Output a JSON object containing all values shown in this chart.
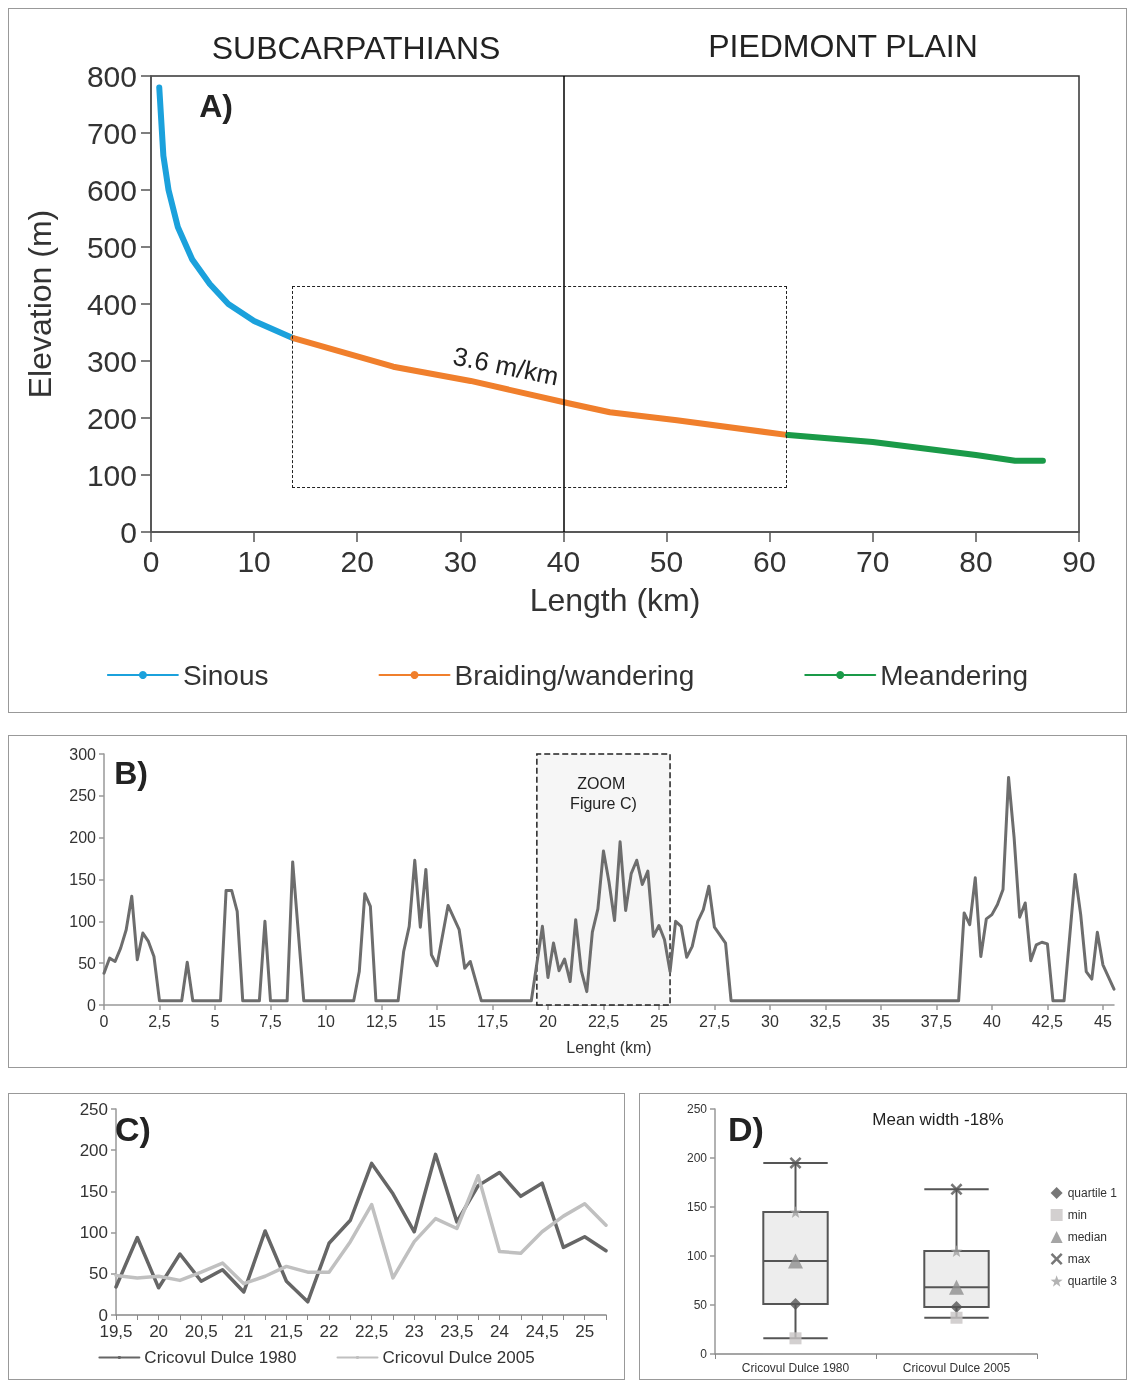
{
  "chart_data": [
    {
      "type": "line",
      "annotations": [
        "SUBCARPATHIANS",
        "PIEDMONT PLAIN",
        "A)",
        "3.6 m/km"
      ],
      "xlabel": "Length (km)",
      "ylabel": "Elevation (m)",
      "xlim": [
        0,
        90
      ],
      "xticks": [
        0,
        10,
        20,
        30,
        40,
        50,
        60,
        70,
        80,
        90
      ],
      "ylim": [
        0,
        800
      ],
      "yticks": [
        0,
        100,
        200,
        300,
        400,
        500,
        600,
        700,
        800
      ],
      "legend": "bottom",
      "ref_lines": [
        {
          "axis": "x",
          "value": 40,
          "color": "#000000"
        }
      ],
      "series": [
        {
          "name": "Sinous",
          "color": "#1ba1dc",
          "x": [
            0.8,
            1.2,
            1.7,
            2.6,
            4,
            5.7,
            7.5,
            10,
            13.8
          ],
          "values": [
            780,
            660,
            600,
            535,
            478,
            435,
            400,
            370,
            340
          ]
        },
        {
          "name": "Braiding/wandering",
          "color": "#f07f2c",
          "x": [
            13.8,
            23.5,
            31,
            40.7,
            44.5,
            51,
            61.8
          ],
          "values": [
            340,
            290,
            265,
            225,
            210,
            196,
            170
          ]
        },
        {
          "name": "Meandering",
          "color": "#1a9a48",
          "x": [
            61.8,
            70,
            80,
            83.8,
            86.5
          ],
          "values": [
            170,
            158,
            135,
            125,
            125
          ]
        }
      ]
    },
    {
      "type": "line",
      "annotations": [
        "B)"
      ],
      "bands": [
        {
          "axis": "x",
          "from": 19.5,
          "to": 25.5,
          "label": "ZOOM Figure C)",
          "color": "#f6f6f6"
        }
      ],
      "xlabel": "Lenght (km)",
      "xlim": [
        0,
        45.5
      ],
      "xticks": [
        0,
        {
          "value": 2.5,
          "label": "2,5"
        },
        5,
        {
          "value": 7.5,
          "label": "7,5"
        },
        10,
        {
          "value": 12.5,
          "label": "12,5"
        },
        15,
        {
          "value": 17.5,
          "label": "17,5"
        },
        20,
        {
          "value": 22.5,
          "label": "22,5"
        },
        25,
        {
          "value": 27.5,
          "label": "27,5"
        },
        30,
        {
          "value": 32.5,
          "label": "32,5"
        },
        35,
        {
          "value": 37.5,
          "label": "37,5"
        },
        40,
        {
          "value": 42.5,
          "label": "42,5"
        },
        45
      ],
      "ylim": [
        0,
        300
      ],
      "yticks": [
        0,
        50,
        100,
        150,
        200,
        250,
        300
      ],
      "color": "#6d6d6d",
      "x": [
        0,
        0.25,
        0.5,
        0.75,
        1,
        1.25,
        1.5,
        1.75,
        2,
        2.25,
        2.5,
        3.5,
        3.75,
        4,
        5.25,
        5.5,
        5.75,
        6,
        6.25,
        7,
        7.25,
        7.5,
        8.25,
        8.5,
        9,
        11.25,
        11.5,
        11.75,
        12,
        12.25,
        13.25,
        13.5,
        13.75,
        14,
        14.25,
        14.5,
        14.75,
        15,
        15.5,
        16,
        16.25,
        16.5,
        17,
        19.25,
        19.75,
        20,
        20.25,
        20.5,
        20.75,
        21,
        21.25,
        21.5,
        21.75,
        22,
        22.25,
        22.5,
        22.75,
        23,
        23.25,
        23.5,
        23.75,
        24,
        24.25,
        24.5,
        24.75,
        25,
        25.25,
        25.5,
        25.75,
        26,
        26.25,
        26.5,
        26.75,
        27,
        27.25,
        27.5,
        28,
        28.25,
        38.5,
        38.75,
        39,
        39.25,
        39.5,
        39.75,
        40,
        40.25,
        40.5,
        40.75,
        41,
        41.25,
        41.5,
        41.75,
        42,
        42.25,
        42.5,
        42.75,
        43.25,
        43.75,
        44,
        44.25,
        44.5,
        44.75,
        45,
        45.5
      ],
      "values": [
        38,
        56,
        52,
        68,
        90,
        130,
        54,
        86,
        76,
        58,
        5,
        5,
        51,
        5,
        5,
        137,
        137,
        112,
        5,
        5,
        100,
        5,
        5,
        171,
        5,
        5,
        40,
        133,
        118,
        5,
        5,
        64,
        94,
        173,
        93,
        162,
        60,
        47,
        119,
        90,
        44,
        52,
        5,
        5,
        94,
        33,
        74,
        41,
        55,
        28,
        102,
        41,
        16,
        87,
        115,
        184,
        147,
        101,
        195,
        113,
        157,
        173,
        144,
        160,
        82,
        95,
        78,
        40,
        100,
        94,
        57,
        70,
        100,
        114,
        142,
        93,
        74,
        5,
        5,
        110,
        96,
        152,
        58,
        103,
        108,
        120,
        138,
        272,
        200,
        105,
        122,
        53,
        72,
        75,
        73,
        5,
        5,
        156,
        108,
        40,
        31,
        87,
        48,
        19
      ]
    },
    {
      "type": "line",
      "annotations": [
        "C)"
      ],
      "categories": [
        "19,5",
        null,
        "20",
        null,
        "20,5",
        null,
        "21",
        null,
        "21,5",
        null,
        "22",
        null,
        "22,5",
        null,
        "23",
        null,
        "23,5",
        null,
        "24",
        null,
        "24,5",
        null,
        "25",
        null
      ],
      "ylim": [
        0,
        250
      ],
      "yticks": [
        0,
        50,
        100,
        150,
        200,
        250
      ],
      "legend": "bottom",
      "series": [
        {
          "name": "Cricovul Dulce 1980",
          "color": "#666666",
          "values": [
            34,
            94,
            33,
            74,
            41,
            55,
            28,
            102,
            41,
            16,
            87,
            115,
            184,
            147,
            101,
            195,
            113,
            157,
            173,
            144,
            160,
            82,
            95,
            78
          ]
        },
        {
          "name": "Cricovul Dulce 2005",
          "color": "#c0c0c0",
          "values": [
            48,
            45,
            47,
            42,
            52,
            63,
            38,
            47,
            59,
            52,
            52,
            89,
            134,
            45,
            89,
            117,
            105,
            169,
            77,
            75,
            101,
            120,
            135,
            109
          ]
        }
      ]
    },
    {
      "type": "box",
      "title": "Mean width -18%",
      "annotations": [
        "D)"
      ],
      "categories": [
        "Cricovul Dulce 1980",
        "Cricovul Dulce 2005"
      ],
      "ylim": [
        0,
        250
      ],
      "yticks": [
        0,
        50,
        100,
        150,
        200,
        250
      ],
      "legend": "right",
      "boxes": [
        {
          "low": 16,
          "q1": 51,
          "median": 95,
          "q3": 145,
          "high": 195
        },
        {
          "low": 37,
          "q1": 48,
          "median": 68,
          "q3": 105,
          "high": 168
        }
      ],
      "series": [
        {
          "name": "quartile 1",
          "type": "scatter",
          "marker": "diamond",
          "color": "#555555",
          "x": [
            "Cricovul Dulce 1980",
            "Cricovul Dulce 2005"
          ],
          "values": [
            51,
            48
          ]
        },
        {
          "name": "min",
          "type": "scatter",
          "marker": "square",
          "color": "#c8c4c4",
          "x": [
            "Cricovul Dulce 1980",
            "Cricovul Dulce 2005"
          ],
          "values": [
            16,
            37
          ]
        },
        {
          "name": "median",
          "type": "scatter",
          "marker": "triangle",
          "color": "#8f8f8f",
          "x": [
            "Cricovul Dulce 1980",
            "Cricovul Dulce 2005"
          ],
          "values": [
            95,
            68
          ]
        },
        {
          "name": "max",
          "type": "scatter",
          "marker": "cross",
          "color": "#555555",
          "x": [
            "Cricovul Dulce 1980",
            "Cricovul Dulce 2005"
          ],
          "values": [
            195,
            168
          ]
        },
        {
          "name": "quartile 3",
          "type": "scatter",
          "marker": "star",
          "color": "#a0a0a0",
          "x": [
            "Cricovul Dulce 1980",
            "Cricovul Dulce 2005"
          ],
          "values": [
            145,
            105
          ]
        }
      ]
    }
  ]
}
